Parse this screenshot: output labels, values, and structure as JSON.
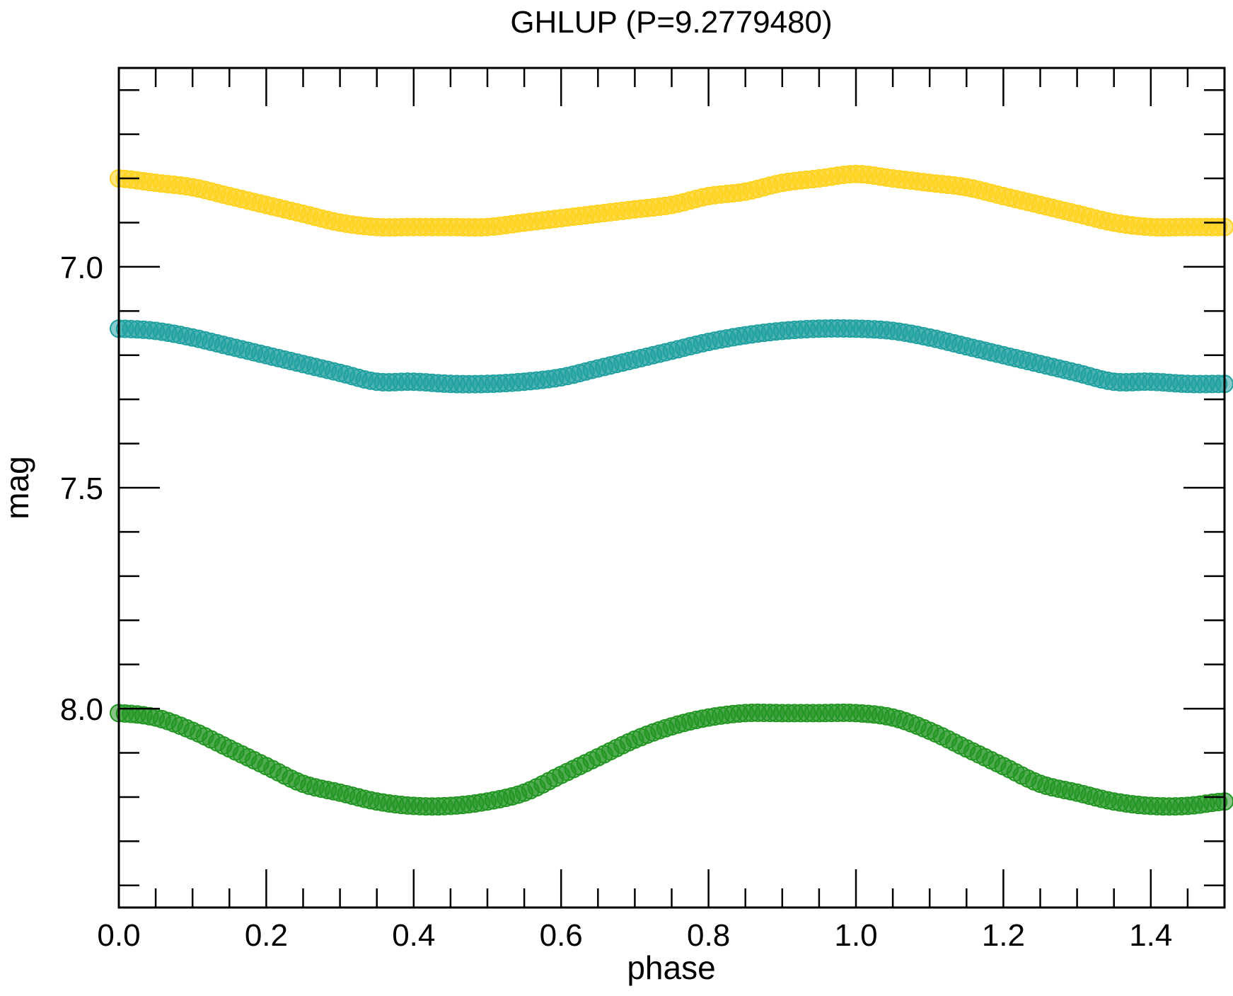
{
  "chart_data": {
    "type": "scatter",
    "title": "GHLUP (P=9.2779480)",
    "xlabel": "phase",
    "ylabel": "mag",
    "xlim": [
      0.0,
      1.5
    ],
    "ylim": [
      8.45,
      6.55
    ],
    "y_inverted": true,
    "grid": false,
    "legend": "none",
    "x_ticks": {
      "major": [
        0.0,
        0.2,
        0.4,
        0.6,
        0.8,
        1.0,
        1.2,
        1.4
      ],
      "labels": [
        "0.0",
        "0.2",
        "0.4",
        "0.6",
        "0.8",
        "1.0",
        "1.2",
        "1.4"
      ],
      "minor_step": 0.05
    },
    "y_ticks": {
      "major": [
        7.0,
        7.5,
        8.0
      ],
      "labels": [
        "7.0",
        "7.5",
        "8.0"
      ],
      "minor_step": 0.1
    },
    "series": [
      {
        "color": "#FFD21E",
        "marker": "circle",
        "x": [
          0.0,
          0.05,
          0.1,
          0.15,
          0.2,
          0.25,
          0.3,
          0.35,
          0.4,
          0.45,
          0.5,
          0.55,
          0.6,
          0.65,
          0.7,
          0.75,
          0.8,
          0.85,
          0.9,
          0.95,
          1.0,
          1.05,
          1.1,
          1.15,
          1.2,
          1.25,
          1.3,
          1.35,
          1.4,
          1.45,
          1.5
        ],
        "y": [
          6.8,
          6.81,
          6.82,
          6.84,
          6.86,
          6.88,
          6.9,
          6.91,
          6.91,
          6.91,
          6.91,
          6.9,
          6.89,
          6.88,
          6.87,
          6.86,
          6.84,
          6.83,
          6.81,
          6.8,
          6.79,
          6.8,
          6.81,
          6.82,
          6.84,
          6.86,
          6.88,
          6.9,
          6.91,
          6.91,
          6.91
        ]
      },
      {
        "color": "#20A0A0",
        "marker": "circle",
        "x": [
          0.0,
          0.05,
          0.1,
          0.15,
          0.2,
          0.25,
          0.3,
          0.35,
          0.4,
          0.45,
          0.5,
          0.55,
          0.6,
          0.65,
          0.7,
          0.75,
          0.8,
          0.85,
          0.9,
          0.95,
          1.0,
          1.05,
          1.1,
          1.15,
          1.2,
          1.25,
          1.3,
          1.35,
          1.4,
          1.45,
          1.5
        ],
        "y": [
          7.14,
          7.145,
          7.16,
          7.18,
          7.2,
          7.22,
          7.24,
          7.26,
          7.26,
          7.265,
          7.265,
          7.26,
          7.25,
          7.23,
          7.21,
          7.19,
          7.17,
          7.155,
          7.145,
          7.14,
          7.14,
          7.145,
          7.16,
          7.18,
          7.2,
          7.22,
          7.24,
          7.26,
          7.26,
          7.265,
          7.265
        ]
      },
      {
        "color": "#229522",
        "marker": "circle",
        "x": [
          0.0,
          0.05,
          0.1,
          0.15,
          0.2,
          0.25,
          0.3,
          0.35,
          0.4,
          0.45,
          0.5,
          0.55,
          0.6,
          0.65,
          0.7,
          0.75,
          0.8,
          0.85,
          0.9,
          0.95,
          1.0,
          1.05,
          1.1,
          1.15,
          1.2,
          1.25,
          1.3,
          1.35,
          1.4,
          1.45,
          1.5
        ],
        "y": [
          8.01,
          8.02,
          8.05,
          8.09,
          8.13,
          8.17,
          8.19,
          8.21,
          8.22,
          8.22,
          8.21,
          8.19,
          8.15,
          8.11,
          8.07,
          8.04,
          8.02,
          8.01,
          8.01,
          8.01,
          8.01,
          8.02,
          8.05,
          8.09,
          8.13,
          8.17,
          8.19,
          8.21,
          8.22,
          8.22,
          8.21
        ]
      }
    ]
  }
}
